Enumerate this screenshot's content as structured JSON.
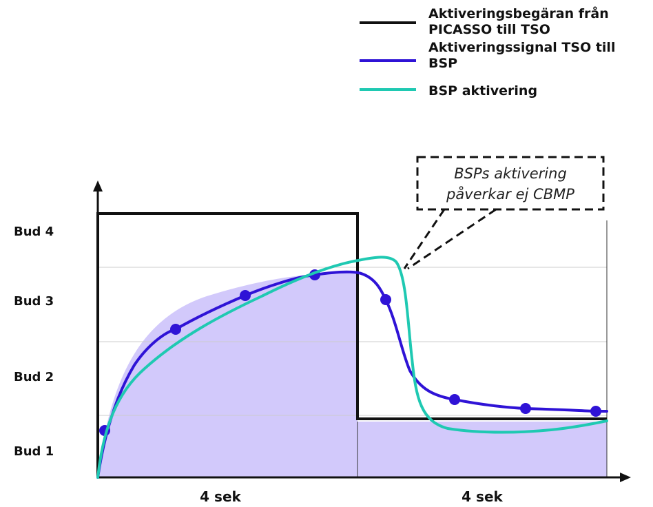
{
  "legend": {
    "items": [
      {
        "lines": [
          "Aktiveringsbegäran från",
          "PICASSO till TSO"
        ],
        "color": "#111111"
      },
      {
        "lines": [
          "Aktiveringssignal TSO till",
          "BSP"
        ],
        "color": "#2f13d6"
      },
      {
        "lines": [
          "BSP aktivering"
        ],
        "color": "#1fc9b2"
      }
    ]
  },
  "y_levels": [
    "Bud 1",
    "Bud 2",
    "Bud 3",
    "Bud 4"
  ],
  "x_segments": [
    "4 sek",
    "4 sek"
  ],
  "callout": {
    "lines": [
      "BSPs aktivering",
      "påverkar ej CBMP"
    ]
  },
  "colors": {
    "request": "#111111",
    "signal": "#2f13d6",
    "activation": "#1fc9b2",
    "fill": "#d2c9fb",
    "grid": "#cccccc",
    "axis": "#111111"
  }
}
